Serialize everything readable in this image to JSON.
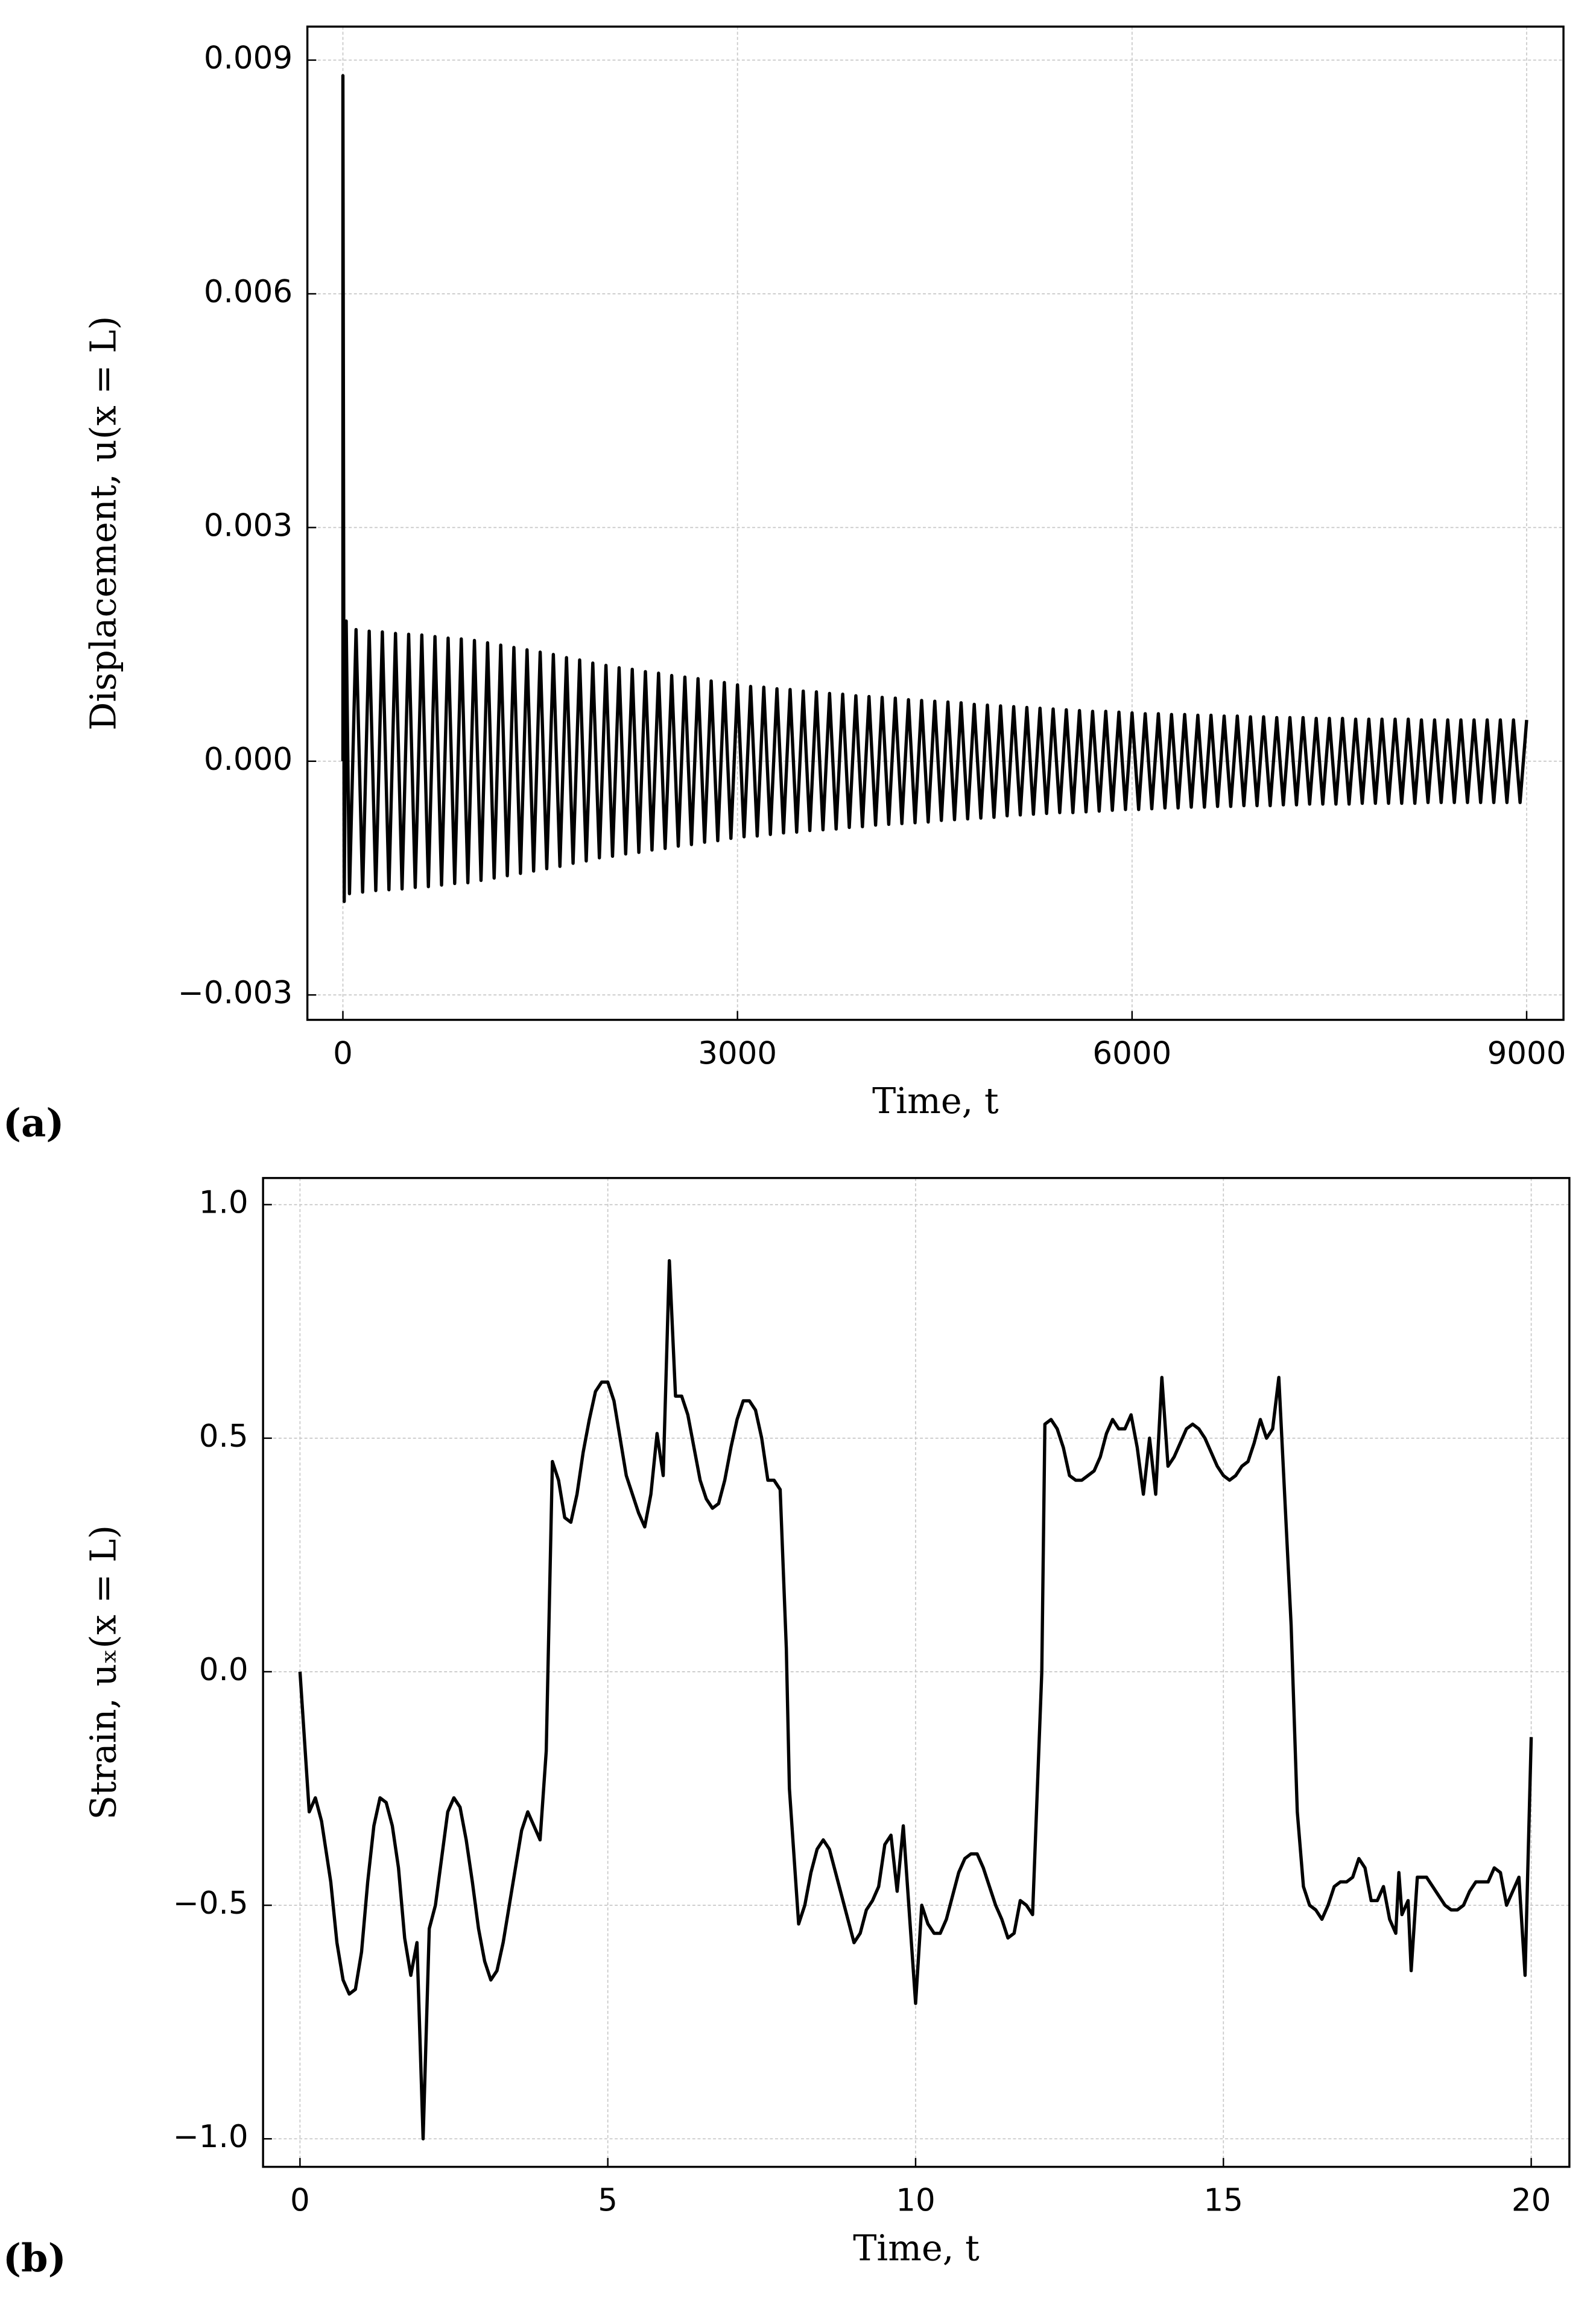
{
  "chart_data": [
    {
      "type": "line",
      "panel_label": "(a)",
      "xlabel": "Time,  t",
      "ylabel": "Displacement,  u(x = L)",
      "color": "#000000",
      "grid": true,
      "xlim": [
        -270,
        9280
      ],
      "ylim": [
        -0.00332,
        0.00943
      ],
      "xticks": [
        0,
        3000,
        6000,
        9000
      ],
      "yticks": [
        {
          "value": -0.003,
          "label": "−0.003"
        },
        {
          "value": 0,
          "label": "0.000"
        },
        0.003,
        0.006,
        0.009
      ],
      "x": [
        0,
        0,
        10,
        25,
        50,
        100,
        150,
        200,
        250,
        300,
        350,
        400,
        450,
        500,
        550,
        600,
        650,
        700,
        750,
        800,
        850,
        900,
        950,
        1000,
        1050,
        1100,
        1150,
        1200,
        1250,
        1300,
        1350,
        1400,
        1450,
        1500,
        1550,
        1600,
        1650,
        1700,
        1750,
        1800,
        1850,
        1900,
        1950,
        2000,
        2050,
        2100,
        2150,
        2200,
        2250,
        2300,
        2350,
        2400,
        2450,
        2500,
        2550,
        2600,
        2650,
        2700,
        2750,
        2800,
        2850,
        2900,
        2950,
        3000,
        3050,
        3100,
        3150,
        3200,
        3250,
        3300,
        3350,
        3400,
        3450,
        3500,
        3550,
        3600,
        3650,
        3700,
        3750,
        3800,
        3850,
        3900,
        3950,
        4000,
        4050,
        4100,
        4150,
        4200,
        4250,
        4300,
        4350,
        4400,
        4450,
        4500,
        4550,
        4600,
        4650,
        4700,
        4750,
        4800,
        4850,
        4900,
        4950,
        5000,
        5050,
        5100,
        5150,
        5200,
        5250,
        5300,
        5350,
        5400,
        5450,
        5500,
        5550,
        5600,
        5650,
        5700,
        5750,
        5800,
        5850,
        5900,
        5950,
        6000,
        6050,
        6100,
        6150,
        6200,
        6250,
        6300,
        6350,
        6400,
        6450,
        6500,
        6550,
        6600,
        6650,
        6700,
        6750,
        6800,
        6850,
        6900,
        6950,
        7000,
        7050,
        7100,
        7150,
        7200,
        7250,
        7300,
        7350,
        7400,
        7450,
        7500,
        7550,
        7600,
        7650,
        7700,
        7750,
        7800,
        7850,
        7900,
        7950,
        8000,
        8050,
        8100,
        8150,
        8200,
        8250,
        8300,
        8350,
        8400,
        8450,
        8500,
        8550,
        8600,
        8650,
        8700,
        8750,
        8800,
        8850,
        8900,
        8950,
        9000
      ],
      "values": [
        0,
        0.0088,
        -0.0018,
        0.0018,
        -0.0017,
        0.00169,
        -0.00168,
        0.00167,
        -0.00166,
        0.00166,
        -0.00165,
        0.00164,
        -0.00164,
        0.00163,
        -0.00162,
        0.00162,
        -0.00161,
        0.0016,
        -0.00159,
        0.00158,
        -0.00157,
        0.00157,
        -0.00156,
        0.00155,
        -0.00153,
        0.00152,
        -0.0015,
        0.00149,
        -0.00147,
        0.00146,
        -0.00144,
        0.00143,
        -0.00141,
        0.0014,
        -0.00138,
        0.00137,
        -0.00135,
        0.00133,
        -0.00131,
        0.0013,
        -0.00128,
        0.00126,
        -0.00124,
        0.00123,
        -0.00122,
        0.0012,
        -0.00119,
        0.00118,
        -0.00117,
        0.00115,
        -0.00114,
        0.00113,
        -0.00112,
        0.0011,
        -0.00109,
        0.00108,
        -0.00107,
        0.00106,
        -0.00104,
        0.00103,
        -0.00102,
        0.00101,
        -0.00099,
        0.00098,
        -0.00097,
        0.00096,
        -0.00096,
        0.00095,
        -0.00094,
        0.00093,
        -0.00092,
        0.00092,
        -0.00091,
        0.0009,
        -0.00089,
        0.00089,
        -0.00088,
        0.00087,
        -0.00087,
        0.00086,
        -0.00085,
        0.00084,
        -0.00084,
        0.00083,
        -0.00082,
        0.00082,
        -0.00081,
        0.00081,
        -0.0008,
        0.00079,
        -0.00079,
        0.00078,
        -0.00078,
        0.00077,
        -0.00076,
        0.00076,
        -0.00075,
        0.00075,
        -0.00074,
        0.00073,
        -0.00073,
        0.00072,
        -0.00072,
        0.00071,
        -0.0007,
        0.0007,
        -0.00069,
        0.00069,
        -0.00068,
        0.00068,
        -0.00067,
        0.00067,
        -0.00066,
        0.00066,
        -0.00066,
        0.00065,
        -0.00065,
        0.00064,
        -0.00064,
        0.00064,
        -0.00063,
        0.00063,
        -0.00062,
        0.00062,
        -0.00062,
        0.00061,
        -0.00061,
        0.00061,
        -0.0006,
        0.0006,
        -0.0006,
        0.0006,
        -0.00059,
        0.00059,
        -0.00059,
        0.00059,
        -0.00058,
        0.00058,
        -0.00058,
        0.00058,
        -0.00057,
        0.00057,
        -0.00057,
        0.00057,
        -0.00057,
        0.00056,
        -0.00056,
        0.00056,
        -0.00056,
        0.00056,
        -0.00055,
        0.00055,
        -0.00055,
        0.00055,
        -0.00055,
        0.00055,
        -0.00055,
        0.00054,
        -0.00054,
        0.00054,
        -0.00054,
        0.00054,
        -0.00054,
        0.00054,
        -0.00054,
        0.00054,
        -0.00054,
        0.00053,
        -0.00053,
        0.00053,
        -0.00053,
        0.00053,
        -0.00053,
        0.00053,
        -0.00053,
        0.00053,
        -0.00053,
        0.00053,
        -0.00053,
        0.00053,
        -0.00053,
        0.00053,
        -0.00053,
        0.00053
      ]
    },
    {
      "type": "line",
      "panel_label": "(b)",
      "xlabel": "Time,  t",
      "ylabel": "Strain,  uₓ(x = L)",
      "color": "#000000",
      "grid": true,
      "xlim": [
        -0.6,
        20.62
      ],
      "ylim": [
        -1.06,
        1.057
      ],
      "xticks": [
        0,
        5,
        10,
        15,
        20
      ],
      "yticks": [
        {
          "value": -1,
          "label": "−1.0"
        },
        {
          "value": -0.5,
          "label": "−0.5"
        },
        {
          "value": 0,
          "label": "0.0"
        },
        0.5,
        {
          "value": 1,
          "label": "1.0"
        }
      ],
      "x": [
        0,
        0.15,
        0.25,
        0.35,
        0.5,
        0.6,
        0.7,
        0.8,
        0.9,
        1.0,
        1.1,
        1.2,
        1.3,
        1.4,
        1.5,
        1.6,
        1.7,
        1.8,
        1.9,
        2.0,
        2.1,
        2.2,
        2.3,
        2.4,
        2.5,
        2.6,
        2.7,
        2.8,
        2.9,
        3.0,
        3.1,
        3.2,
        3.3,
        3.4,
        3.5,
        3.6,
        3.7,
        3.8,
        3.9,
        4.0,
        4.1,
        4.2,
        4.3,
        4.4,
        4.5,
        4.6,
        4.7,
        4.8,
        4.9,
        5.0,
        5.1,
        5.2,
        5.3,
        5.4,
        5.5,
        5.6,
        5.7,
        5.8,
        5.9,
        6.0,
        6.1,
        6.2,
        6.3,
        6.4,
        6.5,
        6.6,
        6.7,
        6.8,
        6.9,
        7.0,
        7.1,
        7.2,
        7.3,
        7.4,
        7.5,
        7.6,
        7.7,
        7.8,
        7.9,
        7.95,
        8.1,
        8.2,
        8.3,
        8.4,
        8.5,
        8.6,
        8.7,
        8.8,
        8.9,
        9.0,
        9.1,
        9.2,
        9.3,
        9.4,
        9.5,
        9.6,
        9.7,
        9.8,
        10.0,
        10.1,
        10.2,
        10.3,
        10.4,
        10.5,
        10.6,
        10.7,
        10.8,
        10.9,
        11.0,
        11.1,
        11.2,
        11.3,
        11.4,
        11.5,
        11.6,
        11.7,
        11.8,
        11.9,
        12.05,
        12.1,
        12.2,
        12.3,
        12.4,
        12.5,
        12.6,
        12.7,
        12.8,
        12.9,
        13.0,
        13.1,
        13.2,
        13.3,
        13.4,
        13.5,
        13.6,
        13.7,
        13.8,
        13.9,
        14.0,
        14.1,
        14.2,
        14.3,
        14.4,
        14.5,
        14.6,
        14.7,
        14.8,
        14.9,
        15.0,
        15.1,
        15.2,
        15.3,
        15.4,
        15.5,
        15.6,
        15.7,
        15.8,
        15.9,
        16.1,
        16.2,
        16.3,
        16.4,
        16.5,
        16.6,
        16.7,
        16.8,
        16.9,
        17.0,
        17.1,
        17.2,
        17.3,
        17.4,
        17.5,
        17.6,
        17.7,
        17.8,
        17.85,
        17.9,
        18.0,
        18.05,
        18.15,
        18.3,
        18.4,
        18.5,
        18.6,
        18.7,
        18.8,
        18.9,
        19.0,
        19.1,
        19.2,
        19.3,
        19.4,
        19.5,
        19.6,
        19.7,
        19.8,
        19.9,
        20.0
      ],
      "values": [
        0,
        -0.3,
        -0.27,
        -0.32,
        -0.45,
        -0.58,
        -0.66,
        -0.69,
        -0.68,
        -0.6,
        -0.45,
        -0.33,
        -0.27,
        -0.28,
        -0.33,
        -0.42,
        -0.57,
        -0.65,
        -0.58,
        -1.0,
        -0.55,
        -0.5,
        -0.4,
        -0.3,
        -0.27,
        -0.29,
        -0.36,
        -0.45,
        -0.55,
        -0.62,
        -0.66,
        -0.64,
        -0.58,
        -0.5,
        -0.42,
        -0.34,
        -0.3,
        -0.33,
        -0.36,
        -0.17,
        0.45,
        0.41,
        0.33,
        0.32,
        0.38,
        0.47,
        0.54,
        0.6,
        0.62,
        0.62,
        0.58,
        0.5,
        0.42,
        0.38,
        0.34,
        0.31,
        0.38,
        0.51,
        0.42,
        0.88,
        0.59,
        0.59,
        0.55,
        0.48,
        0.41,
        0.37,
        0.35,
        0.36,
        0.41,
        0.48,
        0.54,
        0.58,
        0.58,
        0.56,
        0.5,
        0.41,
        0.41,
        0.39,
        0.05,
        -0.25,
        -0.54,
        -0.5,
        -0.43,
        -0.38,
        -0.36,
        -0.38,
        -0.43,
        -0.48,
        -0.53,
        -0.58,
        -0.56,
        -0.51,
        -0.49,
        -0.46,
        -0.37,
        -0.35,
        -0.47,
        -0.33,
        -0.71,
        -0.5,
        -0.54,
        -0.56,
        -0.56,
        -0.53,
        -0.48,
        -0.43,
        -0.4,
        -0.39,
        -0.39,
        -0.42,
        -0.46,
        -0.5,
        -0.53,
        -0.57,
        -0.56,
        -0.49,
        -0.5,
        -0.52,
        0.0,
        0.53,
        0.54,
        0.52,
        0.48,
        0.42,
        0.41,
        0.41,
        0.42,
        0.43,
        0.46,
        0.51,
        0.54,
        0.52,
        0.52,
        0.55,
        0.48,
        0.38,
        0.5,
        0.38,
        0.63,
        0.44,
        0.46,
        0.49,
        0.52,
        0.53,
        0.52,
        0.5,
        0.47,
        0.44,
        0.42,
        0.41,
        0.42,
        0.44,
        0.45,
        0.49,
        0.54,
        0.5,
        0.52,
        0.63,
        0.1,
        -0.3,
        -0.46,
        -0.5,
        -0.51,
        -0.53,
        -0.5,
        -0.46,
        -0.45,
        -0.45,
        -0.44,
        -0.4,
        -0.42,
        -0.49,
        -0.49,
        -0.46,
        -0.53,
        -0.56,
        -0.43,
        -0.52,
        -0.49,
        -0.64,
        -0.44,
        -0.44,
        -0.46,
        -0.48,
        -0.5,
        -0.51,
        -0.51,
        -0.5,
        -0.47,
        -0.45,
        -0.45,
        -0.45,
        -0.42,
        -0.43,
        -0.5,
        -0.47,
        -0.44,
        -0.65,
        -0.14
      ]
    }
  ]
}
